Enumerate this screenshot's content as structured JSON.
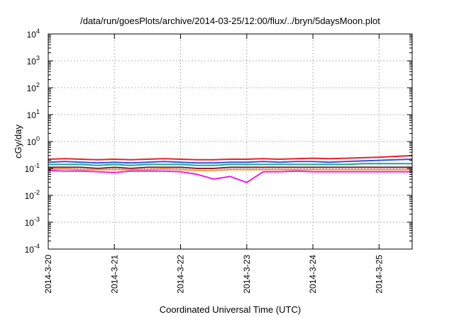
{
  "chart_data": {
    "type": "line",
    "title": "/data/run/goesPlots/archive/2014-03-25/12:00/flux/../bryn/5daysMoon.plot",
    "xlabel": "Coordinated Universal Time (UTC)",
    "ylabel": "cGy/day",
    "yscale": "log",
    "ylim": [
      0.0001,
      10000
    ],
    "xlim": [
      0,
      5.5
    ],
    "x_tick_labels": [
      "2014-3-20",
      "2014-3-21",
      "2014-3-22",
      "2014-3-23",
      "2014-3-24",
      "2014-3-25"
    ],
    "x_tick_values": [
      0,
      1,
      2,
      3,
      4,
      5
    ],
    "y_ticks": [
      {
        "value": 0.0001,
        "mantissa": "10",
        "exp": "-4"
      },
      {
        "value": 0.001,
        "mantissa": "10",
        "exp": "-3"
      },
      {
        "value": 0.01,
        "mantissa": "10",
        "exp": "-2"
      },
      {
        "value": 0.1,
        "mantissa": "10",
        "exp": "-1"
      },
      {
        "value": 1,
        "mantissa": "10",
        "exp": "0"
      },
      {
        "value": 10,
        "mantissa": "10",
        "exp": "1"
      },
      {
        "value": 100,
        "mantissa": "10",
        "exp": "2"
      },
      {
        "value": 1000,
        "mantissa": "10",
        "exp": "3"
      },
      {
        "value": 10000,
        "mantissa": "10",
        "exp": "4"
      }
    ],
    "grid": true,
    "x": [
      0,
      0.25,
      0.5,
      0.75,
      1,
      1.25,
      1.5,
      1.75,
      2,
      2.25,
      2.5,
      2.75,
      3,
      3.25,
      3.5,
      3.75,
      4,
      4.25,
      4.5,
      4.75,
      5,
      5.25,
      5.5
    ],
    "series": [
      {
        "color": "#e8202a",
        "values": [
          0.22,
          0.23,
          0.22,
          0.21,
          0.22,
          0.21,
          0.22,
          0.23,
          0.22,
          0.21,
          0.21,
          0.22,
          0.22,
          0.23,
          0.22,
          0.23,
          0.24,
          0.23,
          0.24,
          0.25,
          0.26,
          0.28,
          0.3
        ]
      },
      {
        "color": "#2b54e8",
        "values": [
          0.17,
          0.18,
          0.17,
          0.16,
          0.17,
          0.16,
          0.17,
          0.18,
          0.17,
          0.16,
          0.16,
          0.17,
          0.17,
          0.18,
          0.17,
          0.18,
          0.18,
          0.17,
          0.18,
          0.19,
          0.2,
          0.21,
          0.22
        ]
      },
      {
        "color": "#1aa88a",
        "values": [
          0.14,
          0.14,
          0.14,
          0.13,
          0.14,
          0.13,
          0.14,
          0.14,
          0.14,
          0.13,
          0.13,
          0.14,
          0.14,
          0.14,
          0.14,
          0.14,
          0.14,
          0.14,
          0.14,
          0.15,
          0.15,
          0.15,
          0.15
        ]
      },
      {
        "color": "#8a1f3a",
        "values": [
          0.11,
          0.11,
          0.11,
          0.1,
          0.11,
          0.1,
          0.11,
          0.11,
          0.11,
          0.1,
          0.1,
          0.11,
          0.11,
          0.11,
          0.11,
          0.11,
          0.11,
          0.11,
          0.11,
          0.11,
          0.11,
          0.11,
          0.11
        ]
      },
      {
        "color": "#f09a30",
        "values": [
          0.095,
          0.095,
          0.09,
          0.09,
          0.09,
          0.09,
          0.09,
          0.095,
          0.09,
          0.085,
          0.085,
          0.09,
          0.09,
          0.09,
          0.09,
          0.09,
          0.09,
          0.09,
          0.09,
          0.09,
          0.09,
          0.09,
          0.09
        ]
      },
      {
        "color": "#ee1ee8",
        "values": [
          0.085,
          0.08,
          0.08,
          0.075,
          0.07,
          0.08,
          0.08,
          0.08,
          0.075,
          0.06,
          0.04,
          0.05,
          0.03,
          0.075,
          0.075,
          0.08,
          0.075,
          0.075,
          0.075,
          0.075,
          0.075,
          0.075,
          0.075
        ]
      }
    ]
  }
}
